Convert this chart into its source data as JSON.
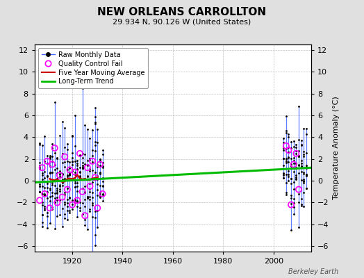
{
  "title": "NEW ORLEANS CARROLLTON",
  "subtitle": "29.934 N, 90.126 W (United States)",
  "ylabel": "Temperature Anomaly (°C)",
  "attribution": "Berkeley Earth",
  "xlim": [
    1905,
    2015
  ],
  "ylim": [
    -6.5,
    12.5
  ],
  "yticks": [
    -6,
    -4,
    -2,
    0,
    2,
    4,
    6,
    8,
    10,
    12
  ],
  "xticks": [
    1920,
    1940,
    1960,
    1980,
    2000
  ],
  "bg_color": "#e0e0e0",
  "plot_bg_color": "#ffffff",
  "grid_color": "#c0c0c0",
  "line_color": "#4466ff",
  "dot_color": "#000000",
  "qc_color": "#ff00ff",
  "moving_avg_color": "#cc0000",
  "trend_color": "#00bb00",
  "trend_x": [
    1905,
    2015
  ],
  "trend_y": [
    -0.15,
    1.2
  ],
  "moving_avg_x_start": 1911,
  "moving_avg_x_end": 1930,
  "seed": 17
}
